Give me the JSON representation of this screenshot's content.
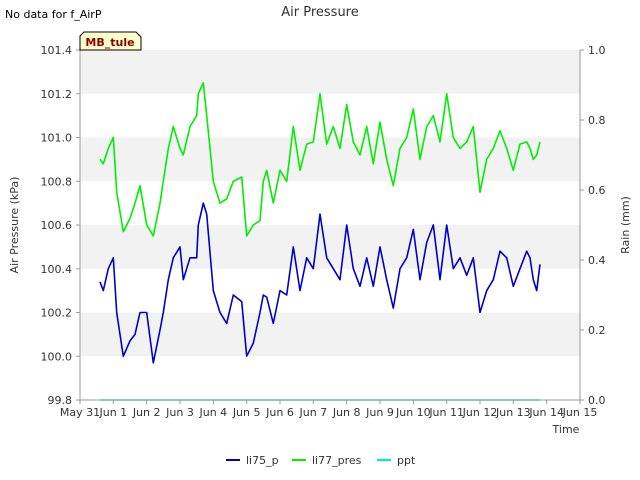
{
  "colors": {
    "band": "#f2f2f2",
    "li75_p": "#0000cc",
    "li77_pres": "#00ee00",
    "ppt": "#00e5ee",
    "axis": "#999999",
    "text": "#333333",
    "badge_bg": "#ffffcc",
    "badge_text": "#8b0000"
  },
  "header": {
    "no_data_note": "No data for f_AirP",
    "badge": "MB_tule"
  },
  "chart_data": {
    "type": "line",
    "title": "Air Pressure",
    "xlabel": "Time",
    "ylabel": "Air Pressure (kPa)",
    "y2label": "Rain (mm)",
    "xlim": [
      0,
      15
    ],
    "ylim": [
      99.8,
      101.4
    ],
    "y2lim": [
      0.0,
      1.0
    ],
    "x_ticks": [
      0,
      1,
      2,
      3,
      4,
      5,
      6,
      7,
      8,
      9,
      10,
      11,
      12,
      13,
      14,
      15
    ],
    "x_tick_labels": [
      "May 31",
      "Jun 1",
      "Jun 2",
      "Jun 3",
      "Jun 4",
      "Jun 5",
      "Jun 6",
      "Jun 7",
      "Jun 8",
      "Jun 9",
      "Jun 10",
      "Jun 11",
      "Jun 12",
      "Jun 13",
      "Jun 14",
      "Jun 15"
    ],
    "y_ticks": [
      99.8,
      100.0,
      100.2,
      100.4,
      100.6,
      100.8,
      101.0,
      101.2,
      101.4
    ],
    "y_tick_labels": [
      "99.8",
      "100.0",
      "100.2",
      "100.4",
      "100.6",
      "100.8",
      "101.0",
      "101.2",
      "101.4"
    ],
    "y2_ticks": [
      0.0,
      0.2,
      0.4,
      0.6,
      0.8,
      1.0
    ],
    "y2_tick_labels": [
      "0.0",
      "0.2",
      "0.4",
      "0.6",
      "0.8",
      "1.0"
    ],
    "grid": "horizontal bands",
    "legend": "bottom-center",
    "series": [
      {
        "name": "li75_p",
        "axis": "left",
        "x": [
          0.6,
          0.7,
          0.85,
          1.0,
          1.1,
          1.3,
          1.5,
          1.65,
          1.8,
          2.0,
          2.2,
          2.4,
          2.5,
          2.65,
          2.8,
          3.0,
          3.1,
          3.3,
          3.5,
          3.55,
          3.7,
          3.8,
          4.0,
          4.2,
          4.4,
          4.6,
          4.85,
          5.0,
          5.2,
          5.4,
          5.5,
          5.6,
          5.8,
          6.0,
          6.2,
          6.4,
          6.6,
          6.8,
          7.0,
          7.2,
          7.4,
          7.6,
          7.8,
          8.0,
          8.2,
          8.4,
          8.6,
          8.8,
          9.0,
          9.2,
          9.4,
          9.6,
          9.8,
          10.0,
          10.2,
          10.4,
          10.6,
          10.8,
          11.0,
          11.2,
          11.4,
          11.6,
          11.8,
          12.0,
          12.2,
          12.4,
          12.6,
          12.8,
          13.0,
          13.2,
          13.4,
          13.5,
          13.6,
          13.7,
          13.8
        ],
        "values": [
          100.34,
          100.3,
          100.4,
          100.45,
          100.2,
          100.0,
          100.07,
          100.1,
          100.2,
          100.2,
          99.97,
          100.12,
          100.2,
          100.35,
          100.45,
          100.5,
          100.35,
          100.45,
          100.45,
          100.6,
          100.7,
          100.65,
          100.3,
          100.2,
          100.15,
          100.28,
          100.25,
          100.0,
          100.06,
          100.2,
          100.28,
          100.27,
          100.15,
          100.3,
          100.28,
          100.5,
          100.3,
          100.45,
          100.4,
          100.65,
          100.45,
          100.4,
          100.35,
          100.6,
          100.4,
          100.32,
          100.45,
          100.32,
          100.5,
          100.35,
          100.22,
          100.4,
          100.45,
          100.58,
          100.35,
          100.52,
          100.6,
          100.35,
          100.6,
          100.4,
          100.45,
          100.37,
          100.45,
          100.2,
          100.3,
          100.35,
          100.48,
          100.45,
          100.32,
          100.4,
          100.48,
          100.45,
          100.35,
          100.3,
          100.42
        ]
      },
      {
        "name": "li77_pres",
        "axis": "left",
        "x": [
          0.6,
          0.7,
          0.85,
          1.0,
          1.1,
          1.3,
          1.5,
          1.65,
          1.8,
          2.0,
          2.2,
          2.4,
          2.5,
          2.65,
          2.8,
          3.0,
          3.1,
          3.3,
          3.5,
          3.55,
          3.7,
          3.8,
          4.0,
          4.2,
          4.4,
          4.6,
          4.85,
          5.0,
          5.2,
          5.4,
          5.5,
          5.6,
          5.8,
          6.0,
          6.2,
          6.4,
          6.6,
          6.8,
          7.0,
          7.2,
          7.4,
          7.6,
          7.8,
          8.0,
          8.2,
          8.4,
          8.6,
          8.8,
          9.0,
          9.2,
          9.4,
          9.6,
          9.8,
          10.0,
          10.2,
          10.4,
          10.6,
          10.8,
          11.0,
          11.2,
          11.4,
          11.6,
          11.8,
          12.0,
          12.2,
          12.4,
          12.6,
          12.8,
          13.0,
          13.2,
          13.4,
          13.5,
          13.6,
          13.7,
          13.8
        ],
        "values": [
          100.9,
          100.88,
          100.95,
          101.0,
          100.75,
          100.57,
          100.63,
          100.7,
          100.78,
          100.6,
          100.55,
          100.7,
          100.8,
          100.95,
          101.05,
          100.95,
          100.92,
          101.05,
          101.1,
          101.2,
          101.25,
          101.1,
          100.8,
          100.7,
          100.72,
          100.8,
          100.82,
          100.55,
          100.6,
          100.62,
          100.8,
          100.85,
          100.7,
          100.85,
          100.8,
          101.05,
          100.85,
          100.97,
          100.98,
          101.2,
          100.97,
          101.05,
          100.95,
          101.15,
          100.98,
          100.92,
          101.05,
          100.88,
          101.07,
          100.9,
          100.78,
          100.95,
          101.0,
          101.13,
          100.9,
          101.05,
          101.1,
          100.98,
          101.2,
          101.0,
          100.95,
          100.98,
          101.05,
          100.75,
          100.9,
          100.95,
          101.03,
          100.95,
          100.85,
          100.97,
          100.98,
          100.95,
          100.9,
          100.92,
          100.98
        ]
      },
      {
        "name": "ppt",
        "axis": "right",
        "x": [
          0.6,
          13.8
        ],
        "values": [
          0.0,
          0.0
        ]
      }
    ]
  }
}
